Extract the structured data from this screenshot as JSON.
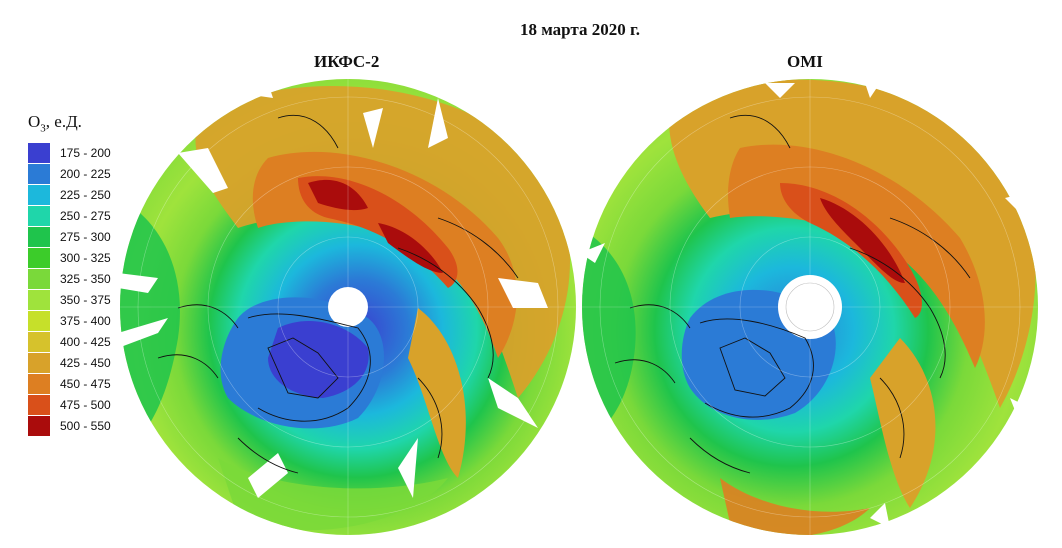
{
  "title": "18 марта 2020 г.",
  "maps": [
    {
      "title": "ИКФС-2"
    },
    {
      "title": "OMI"
    }
  ],
  "legend": {
    "title_main": "O",
    "title_sub": "3",
    "title_rest": ", е.Д.",
    "items": [
      {
        "label": "175 - 200",
        "color": "#3a3fd0"
      },
      {
        "label": "200 - 225",
        "color": "#2b7bd6"
      },
      {
        "label": "225 - 250",
        "color": "#1cb8dc"
      },
      {
        "label": "250 - 275",
        "color": "#1fd6aa"
      },
      {
        "label": "275 - 300",
        "color": "#1fc44c"
      },
      {
        "label": "300 - 325",
        "color": "#3ccc2a"
      },
      {
        "label": "325 - 350",
        "color": "#7ad93a"
      },
      {
        "label": "350 - 375",
        "color": "#9fe33c"
      },
      {
        "label": "375 - 400",
        "color": "#c6e02a"
      },
      {
        "label": "400 - 425",
        "color": "#d6c22c"
      },
      {
        "label": "425 - 450",
        "color": "#d8a22a"
      },
      {
        "label": "450 - 475",
        "color": "#dd7f22"
      },
      {
        "label": "475 - 500",
        "color": "#d9501a"
      },
      {
        "label": "500 - 550",
        "color": "#aa0c0c"
      }
    ]
  }
}
